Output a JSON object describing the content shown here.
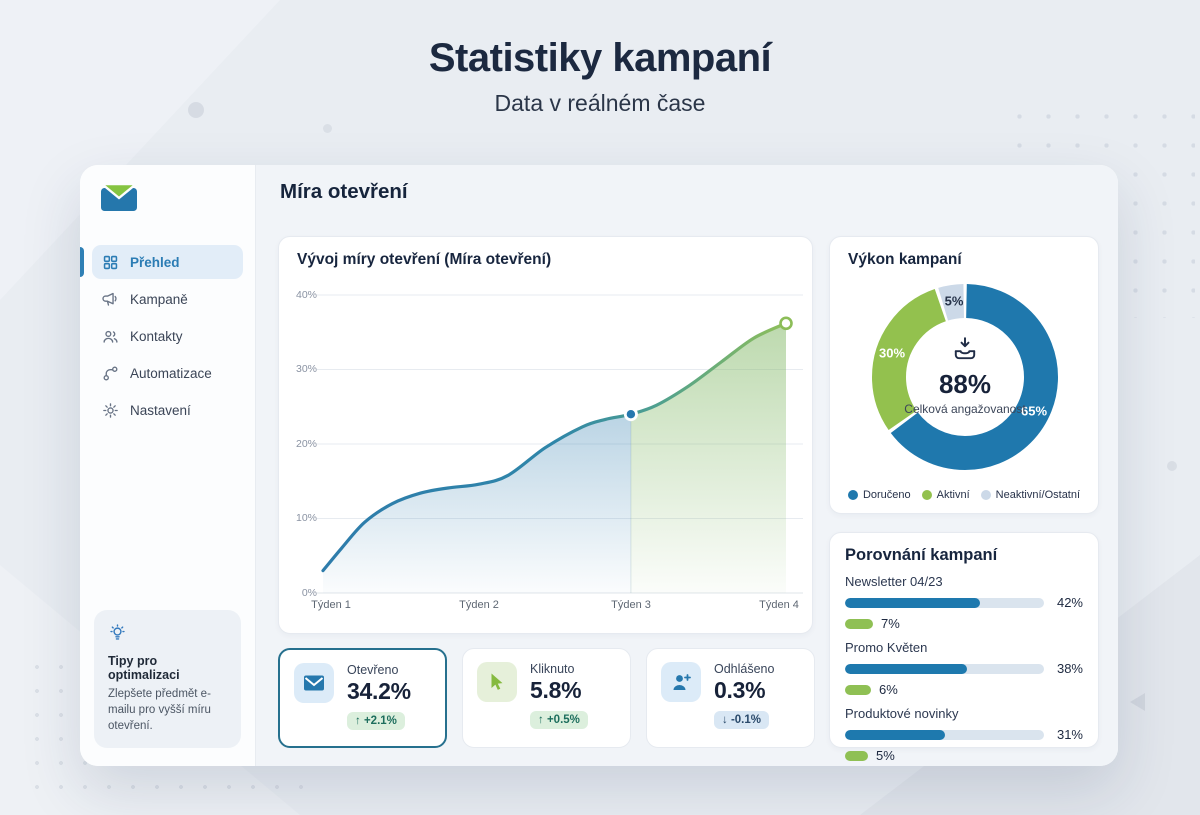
{
  "header": {
    "title": "Statistiky kampaní",
    "subtitle": "Data v reálném čase"
  },
  "sidebar": {
    "logo_name": "envelope-logo",
    "items": [
      {
        "label": "Přehled",
        "active": true
      },
      {
        "label": "Kampaně",
        "active": false
      },
      {
        "label": "Kontakty",
        "active": false
      },
      {
        "label": "Automatizace",
        "active": false
      },
      {
        "label": "Nastavení",
        "active": false
      }
    ],
    "tip": {
      "title": "Tipy pro optimalizaci",
      "body": "Zlepšete předmět e-mailu pro vyšší míru otevření."
    }
  },
  "main": {
    "heading": "Míra otevření"
  },
  "chart_data": [
    {
      "type": "area",
      "title": "Vývoj míry otevření (Míra otevření)",
      "xlabel": "",
      "ylabel": "Míra otevření",
      "ylim": [
        0,
        40
      ],
      "grid": true,
      "yticks": [
        "40%",
        "30%",
        "20%",
        "10%",
        "0%"
      ],
      "x_ticks": [
        "Týden 1",
        "Týden 2",
        "Týden 3",
        "Týden 4"
      ],
      "weekly_values": [
        3,
        14.6,
        24,
        36.2
      ],
      "samples": [
        [
          0,
          3
        ],
        [
          0.04,
          6
        ],
        [
          0.09,
          9.5
        ],
        [
          0.15,
          12
        ],
        [
          0.21,
          13.4
        ],
        [
          0.27,
          14.1
        ],
        [
          0.337,
          14.6
        ],
        [
          0.4,
          15.8
        ],
        [
          0.48,
          19.5
        ],
        [
          0.56,
          22.3
        ],
        [
          0.61,
          23.3
        ],
        [
          0.665,
          24
        ],
        [
          0.72,
          25.2
        ],
        [
          0.79,
          27.8
        ],
        [
          0.86,
          31
        ],
        [
          0.93,
          34.2
        ],
        [
          1,
          36.2
        ]
      ],
      "split_f": 0.665,
      "colors": {
        "line_start": "#2e7cab",
        "line_end": "#8fbf5a",
        "fill_left": "#3482b0",
        "fill_right": "#7ab46e"
      }
    },
    {
      "type": "pie",
      "title": "Výkon kampaní",
      "center": {
        "value": "88%",
        "label": "Celková angažovanost",
        "icon": "inbox-arrow-down-icon"
      },
      "segments": [
        {
          "label": "Doručeno",
          "value": 65,
          "display": "65%",
          "color": "#1f78ad"
        },
        {
          "label": "Aktivní",
          "value": 30,
          "display": "30%",
          "color": "#93c14e"
        },
        {
          "label": "Neaktivní/Ostatní",
          "value": 5,
          "display": "5%",
          "color": "#ccd9e8"
        }
      ],
      "legend_position": "bottom"
    },
    {
      "type": "bar",
      "title": "Porovnání kampaní",
      "scale_max": 62,
      "rows": [
        {
          "label": "Newsletter 04/23",
          "open_rate": 42,
          "open_display": "42%",
          "click_rate": 7,
          "click_display": "7%"
        },
        {
          "label": "Promo Květen",
          "open_rate": 38,
          "open_display": "38%",
          "click_rate": 6,
          "click_display": "6%"
        },
        {
          "label": "Produktové novinky",
          "open_rate": 31,
          "open_display": "31%",
          "click_rate": 5,
          "click_display": "5%"
        }
      ],
      "bar_color": "#1e79ae",
      "pill_color": "#8fc054"
    }
  ],
  "stats": [
    {
      "label": "Otevřeno",
      "value": "34.2%",
      "arrow": "↑",
      "delta": "+2.1%",
      "selected": true,
      "icon": "envelope-icon"
    },
    {
      "label": "Kliknuto",
      "value": "5.8%",
      "arrow": "↑",
      "delta": "+0.5%",
      "selected": false,
      "icon": "cursor-icon"
    },
    {
      "label": "Odhlášeno",
      "value": "0.3%",
      "arrow": "↓",
      "delta": "-0.1%",
      "selected": false,
      "icon": "user-plus-icon"
    }
  ],
  "accent_colors": {
    "blue": "#2478ad",
    "green": "#8fc052",
    "light": "#ccd9e8",
    "navy": "#172239"
  }
}
